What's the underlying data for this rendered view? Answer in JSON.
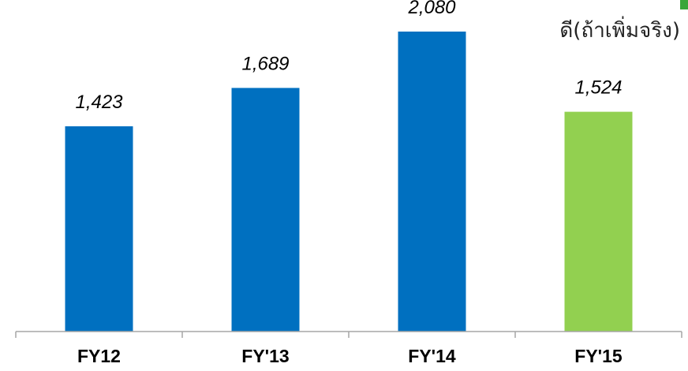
{
  "chart_data": {
    "type": "bar",
    "categories": [
      "FY12",
      "FY'13",
      "FY'14",
      "FY'15"
    ],
    "values": [
      1423,
      1689,
      2080,
      1524
    ],
    "data_labels": [
      "1,423",
      "1,689",
      "2,080",
      "1,524"
    ],
    "bar_colors": [
      "#0070c0",
      "#0070c0",
      "#0070c0",
      "#92d050"
    ],
    "annotation": "ดี(ถ้าเพิ่มจริง)",
    "title": "",
    "xlabel": "",
    "ylabel": "",
    "ylim": [
      0,
      2200
    ],
    "grid": false,
    "legend": "none"
  },
  "colors": {
    "axis": "#a6a6a6",
    "text": "#000000",
    "corner_accent": "#3aa63a"
  }
}
